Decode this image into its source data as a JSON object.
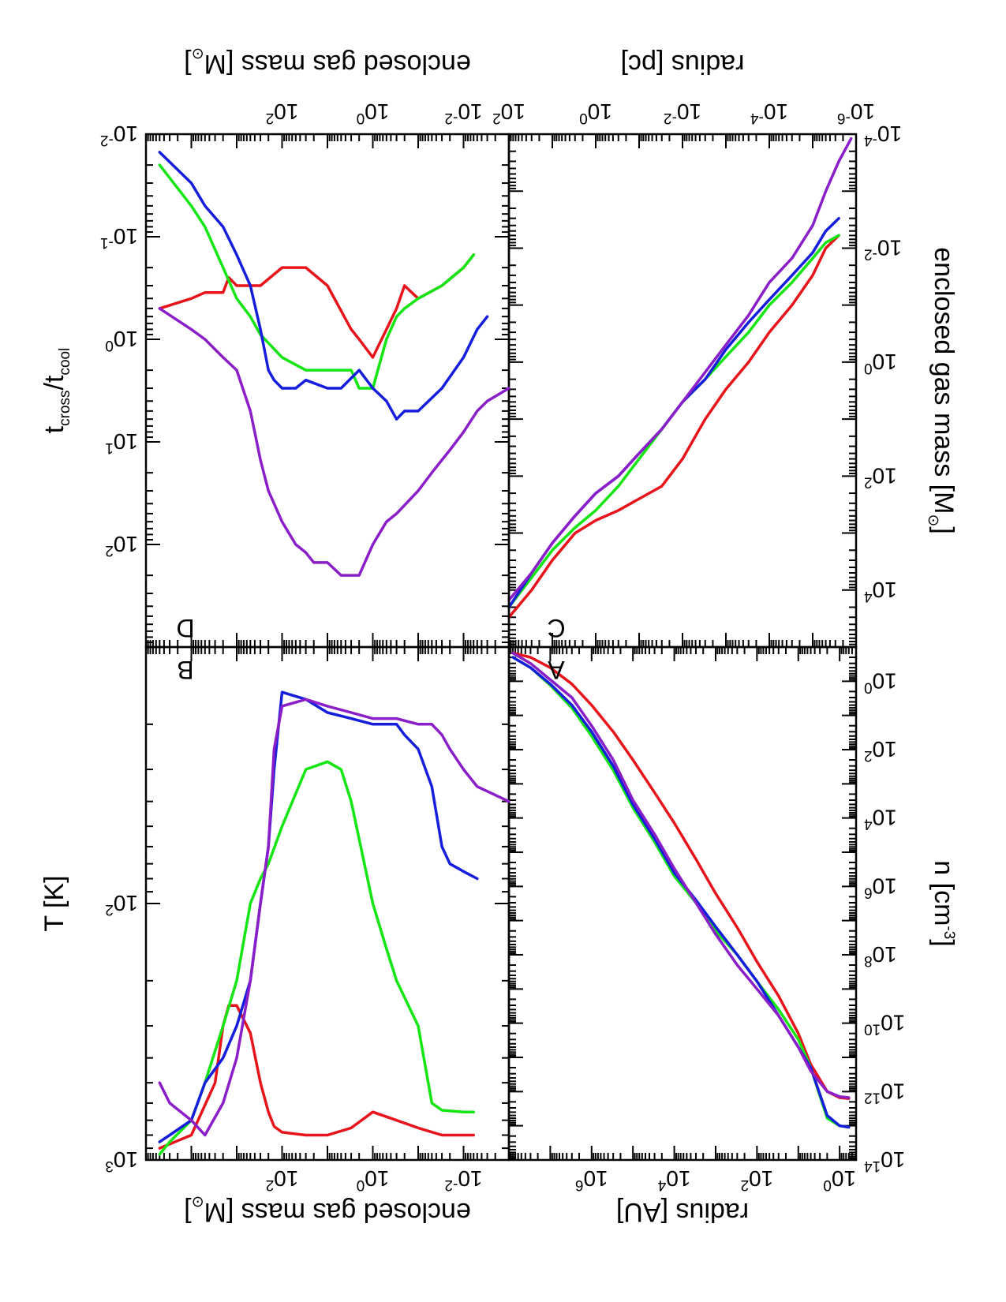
{
  "figure": {
    "panels": {
      "A": {
        "label": "A"
      },
      "B": {
        "label": "B"
      },
      "C": {
        "label": "C"
      },
      "D": {
        "label": "D"
      }
    }
  },
  "colors": {
    "red": "#e8141b",
    "green": "#14e614",
    "blue": "#141edc",
    "purple": "#8a1ec8"
  },
  "chart_data": [
    {
      "panel": "A",
      "type": "line",
      "xlabel": "radius [AU]",
      "ylabel": "n [cm^-3]",
      "xscale": "log",
      "yscale": "log",
      "xlim": [
        0.4,
        100000000.0
      ],
      "ylim": [
        0.1,
        100000000000000.0
      ],
      "xticks": [
        {
          "base": "10",
          "exp": "0",
          "value": 1
        },
        {
          "base": "10",
          "exp": "2",
          "value": 100
        },
        {
          "base": "10",
          "exp": "4",
          "value": 10000
        },
        {
          "base": "10",
          "exp": "6",
          "value": 1000000
        }
      ],
      "yticks": [
        {
          "base": "10",
          "exp": "0",
          "value": 1
        },
        {
          "base": "10",
          "exp": "2",
          "value": 100
        },
        {
          "base": "10",
          "exp": "4",
          "value": 10000
        },
        {
          "base": "10",
          "exp": "6",
          "value": 1000000
        },
        {
          "base": "10",
          "exp": "8",
          "value": 100000000
        },
        {
          "base": "10",
          "exp": "10",
          "value": 10000000000
        },
        {
          "base": "10",
          "exp": "12",
          "value": 1000000000000
        },
        {
          "base": "10",
          "exp": "14",
          "value": 100000000000000
        }
      ],
      "series": [
        {
          "color": "red",
          "x": [
            0.6,
            1,
            2,
            5,
            10,
            30,
            100,
            300,
            1000,
            3000,
            10000,
            30000,
            100000,
            300000,
            1000000,
            3000000,
            10000000,
            30000000,
            80000000
          ],
          "y": [
            1600000000000.0,
            1500000000000.0,
            1000000000000.0,
            160000000000.0,
            20000000000.0,
            1600000000.0,
            160000000.0,
            16000000.0,
            1600000.0,
            160000.0,
            14000.0,
            1800.0,
            200.0,
            30,
            5,
            1.2,
            0.4,
            0.2,
            0.15
          ]
        },
        {
          "color": "green",
          "x": [
            0.6,
            1,
            2,
            5,
            10,
            30,
            100,
            300,
            1000,
            3000,
            10000,
            30000,
            100000,
            300000,
            1000000,
            3000000,
            10000000,
            30000000,
            80000000
          ],
          "y": [
            11000000000000.0,
            10000000000000.0,
            6000000000000.0,
            200000000000.0,
            30000000000.0,
            4000000000.0,
            600000000.0,
            100000000.0,
            20000000.0,
            3000000.0,
            500000.0,
            50000.0,
            5000.0,
            400.0,
            40,
            6,
            1.3,
            0.4,
            0.2
          ]
        },
        {
          "color": "blue",
          "x": [
            0.6,
            1,
            2,
            5,
            10,
            30,
            100,
            300,
            1000,
            3000,
            10000,
            30000,
            100000,
            300000,
            1000000,
            3000000,
            10000000,
            30000000,
            80000000
          ],
          "y": [
            11000000000000.0,
            10000000000000.0,
            5000000000000.0,
            200000000000.0,
            50000000000.0,
            6000000000.0,
            600000000.0,
            100000000.0,
            15000000.0,
            2500000.0,
            400000.0,
            40000.0,
            4000.0,
            300.0,
            30,
            5,
            1.2,
            0.4,
            0.2
          ]
        },
        {
          "color": "purple",
          "x": [
            0.6,
            1,
            2,
            5,
            10,
            30,
            100,
            300,
            1000,
            3000,
            10000,
            30000,
            100000,
            300000,
            1000000,
            3000000,
            10000000,
            30000000,
            80000000
          ],
          "y": [
            1500000000000.0,
            1400000000000.0,
            1000000000000.0,
            250000000000.0,
            50000000000.0,
            6000000000.0,
            1000000000.0,
            200000000.0,
            25000000.0,
            3000000.0,
            300000.0,
            30000.0,
            3000.0,
            200.0,
            20,
            3,
            0.9,
            0.3,
            0.15
          ]
        }
      ]
    },
    {
      "panel": "B",
      "type": "line",
      "xlabel": "enclosed gas mass [M_sun]",
      "ylabel": "T [K]",
      "xscale": "log",
      "yscale": "log",
      "xlim": [
        0.001,
        100000
      ],
      "ylim": [
        10,
        1000
      ],
      "xticks": [
        {
          "base": "10",
          "exp": "-2",
          "value": 0.01
        },
        {
          "base": "10",
          "exp": "0",
          "value": 1
        },
        {
          "base": "10",
          "exp": "2",
          "value": 100
        }
      ],
      "yticks": [
        {
          "base": "10",
          "exp": "2",
          "value": 100
        },
        {
          "base": "10",
          "exp": "3",
          "value": 1000
        }
      ],
      "series": [
        {
          "color": "red",
          "x": [
            0.006,
            0.01,
            0.03,
            0.1,
            0.3,
            1,
            3,
            10,
            30,
            100,
            150,
            200,
            300,
            500,
            1000,
            1500,
            2000,
            3000,
            10000,
            50000
          ],
          "y": [
            800,
            800,
            800,
            750,
            700,
            650,
            750,
            800,
            800,
            780,
            740,
            650,
            500,
            320,
            250,
            250,
            300,
            500,
            800,
            900
          ]
        },
        {
          "color": "green",
          "x": [
            0.006,
            0.01,
            0.03,
            0.05,
            0.1,
            0.3,
            0.5,
            1,
            3,
            5,
            10,
            30,
            100,
            200,
            300,
            500,
            1000,
            2000,
            5000,
            10000,
            30000,
            50000
          ],
          "y": [
            650,
            650,
            640,
            600,
            300,
            200,
            150,
            100,
            40,
            30,
            28,
            30,
            50,
            70,
            80,
            100,
            200,
            300,
            500,
            700,
            850,
            950
          ]
        },
        {
          "color": "blue",
          "x": [
            0.005,
            0.01,
            0.02,
            0.03,
            0.05,
            0.1,
            0.2,
            0.3,
            0.5,
            1,
            3,
            10,
            30,
            100,
            150,
            200,
            300,
            500,
            1000,
            2000,
            5000,
            10000,
            30000,
            50000
          ],
          "y": [
            80,
            75,
            70,
            60,
            35,
            25,
            22,
            20,
            20,
            20,
            19,
            18,
            16,
            15,
            30,
            60,
            100,
            200,
            300,
            400,
            500,
            700,
            800,
            850
          ]
        },
        {
          "color": "purple",
          "x": [
            0.001,
            0.005,
            0.01,
            0.02,
            0.03,
            0.05,
            0.1,
            0.3,
            1,
            3,
            10,
            30,
            100,
            150,
            200,
            300,
            500,
            1000,
            2000,
            5000,
            10000,
            30000,
            50000
          ],
          "y": [
            40,
            35,
            30,
            25,
            22,
            20,
            20,
            19,
            19,
            18,
            17,
            16,
            17,
            25,
            60,
            100,
            200,
            400,
            600,
            800,
            700,
            600,
            500
          ]
        }
      ]
    },
    {
      "panel": "C",
      "type": "line",
      "xlabel": "radius [pc]",
      "ylabel": "enclosed gas mass [M_sun]",
      "xscale": "log",
      "yscale": "log",
      "xlim": [
        1e-06,
        100
      ],
      "ylim": [
        0.0001,
        100000
      ],
      "xticks": [
        {
          "base": "10",
          "exp": "-6",
          "value": 1e-06
        },
        {
          "base": "10",
          "exp": "-4",
          "value": 0.0001
        },
        {
          "base": "10",
          "exp": "-2",
          "value": 0.01
        },
        {
          "base": "10",
          "exp": "0",
          "value": 1
        },
        {
          "base": "10",
          "exp": "2",
          "value": 100
        }
      ],
      "yticks": [
        {
          "base": "10",
          "exp": "-4",
          "value": 0.0001
        },
        {
          "base": "10",
          "exp": "-2",
          "value": 0.01
        },
        {
          "base": "10",
          "exp": "0",
          "value": 1
        },
        {
          "base": "10",
          "exp": "2",
          "value": 100
        },
        {
          "base": "10",
          "exp": "4",
          "value": 10000
        }
      ],
      "series": [
        {
          "color": "red",
          "x": [
            2.5e-06,
            5e-06,
            1e-05,
            3e-05,
            0.0001,
            0.0003,
            0.001,
            0.003,
            0.01,
            0.03,
            0.1,
            0.3,
            1,
            3,
            10,
            30,
            100
          ],
          "y": [
            0.006,
            0.01,
            0.03,
            0.1,
            0.3,
            1,
            3,
            10,
            50,
            150,
            250,
            400,
            600,
            1000,
            3000,
            10000,
            30000
          ]
        },
        {
          "color": "green",
          "x": [
            2.5e-06,
            5e-06,
            1e-05,
            3e-05,
            0.0001,
            0.0003,
            0.001,
            0.003,
            0.01,
            0.03,
            0.1,
            0.3,
            1,
            3,
            10,
            30,
            100
          ],
          "y": [
            0.006,
            0.008,
            0.015,
            0.04,
            0.1,
            0.3,
            0.8,
            2,
            5,
            15,
            50,
            150,
            400,
            800,
            2000,
            6000,
            20000
          ]
        },
        {
          "color": "blue",
          "x": [
            2.5e-06,
            5e-06,
            1e-05,
            3e-05,
            0.0001,
            0.0003,
            0.001,
            0.003,
            0.01,
            0.03,
            0.1,
            0.3,
            1,
            3,
            10,
            30,
            100
          ],
          "y": [
            0.003,
            0.005,
            0.012,
            0.03,
            0.08,
            0.2,
            0.6,
            2,
            5,
            15,
            40,
            100,
            200,
            500,
            1500,
            5000,
            20000
          ]
        },
        {
          "color": "purple",
          "x": [
            1.3e-06,
            2.5e-06,
            5e-06,
            1e-05,
            3e-05,
            0.0001,
            0.0003,
            0.001,
            0.003,
            0.01,
            0.03,
            0.1,
            0.3,
            1,
            3,
            10,
            30,
            100
          ],
          "y": [
            0.00012,
            0.0003,
            0.001,
            0.004,
            0.015,
            0.04,
            0.15,
            0.5,
            1.5,
            5,
            15,
            40,
            100,
            200,
            500,
            1500,
            5000,
            15000
          ]
        }
      ]
    },
    {
      "panel": "D",
      "type": "line",
      "xlabel": "enclosed gas mass [M_sun]",
      "ylabel": "t_cross/t_cool",
      "xscale": "log",
      "yscale": "log",
      "xlim": [
        0.001,
        100000
      ],
      "ylim": [
        0.01,
        1000
      ],
      "xticks": [
        {
          "base": "10",
          "exp": "-2",
          "value": 0.01
        },
        {
          "base": "10",
          "exp": "0",
          "value": 1
        },
        {
          "base": "10",
          "exp": "2",
          "value": 100
        }
      ],
      "yticks": [
        {
          "base": "10",
          "exp": "-2",
          "value": 0.01
        },
        {
          "base": "10",
          "exp": "-1",
          "value": 0.1
        },
        {
          "base": "10",
          "exp": "0",
          "value": 1
        },
        {
          "base": "10",
          "exp": "1",
          "value": 10
        },
        {
          "base": "10",
          "exp": "2",
          "value": 100
        }
      ],
      "series": [
        {
          "color": "red",
          "x": [
            0.006,
            0.01,
            0.03,
            0.1,
            0.2,
            0.3,
            0.5,
            1,
            2,
            3,
            10,
            30,
            100,
            300,
            500,
            1000,
            1500,
            2000,
            5000,
            10000,
            50000
          ],
          "y": [
            0.15,
            0.2,
            0.3,
            0.4,
            0.3,
            0.5,
            0.8,
            1.5,
            1.0,
            0.8,
            0.3,
            0.2,
            0.2,
            0.3,
            0.3,
            0.3,
            0.25,
            0.35,
            0.35,
            0.4,
            0.5
          ]
        },
        {
          "color": "green",
          "x": [
            0.006,
            0.01,
            0.03,
            0.1,
            0.2,
            0.3,
            0.5,
            1,
            2,
            3,
            10,
            30,
            100,
            300,
            500,
            1000,
            2000,
            5000,
            10000,
            50000
          ],
          "y": [
            0.15,
            0.2,
            0.3,
            0.4,
            0.5,
            0.6,
            1.0,
            3,
            3,
            2,
            2,
            2,
            1.5,
            0.9,
            0.6,
            0.4,
            0.2,
            0.08,
            0.05,
            0.02
          ]
        },
        {
          "color": "blue",
          "x": [
            0.003,
            0.005,
            0.01,
            0.03,
            0.1,
            0.2,
            0.3,
            0.5,
            1,
            2,
            5,
            10,
            30,
            50,
            100,
            150,
            200,
            300,
            500,
            1000,
            2000,
            5000,
            10000,
            50000
          ],
          "y": [
            0.6,
            0.8,
            1.5,
            3,
            5,
            5,
            6,
            4,
            3,
            2,
            3,
            3,
            2.5,
            3,
            3,
            2.5,
            2,
            0.8,
            0.3,
            0.15,
            0.08,
            0.05,
            0.03,
            0.015
          ]
        },
        {
          "color": "purple",
          "x": [
            0.001,
            0.003,
            0.005,
            0.01,
            0.02,
            0.03,
            0.05,
            0.1,
            0.3,
            0.5,
            1,
            2,
            3,
            5,
            10,
            20,
            30,
            50,
            100,
            200,
            300,
            500,
            1000,
            2000,
            5000,
            10000,
            50000
          ],
          "y": [
            3,
            4,
            5,
            8,
            12,
            15,
            20,
            30,
            50,
            60,
            100,
            200,
            200,
            200,
            150,
            150,
            120,
            100,
            60,
            30,
            15,
            5,
            2,
            1.5,
            1.0,
            0.8,
            0.5
          ]
        }
      ]
    }
  ]
}
